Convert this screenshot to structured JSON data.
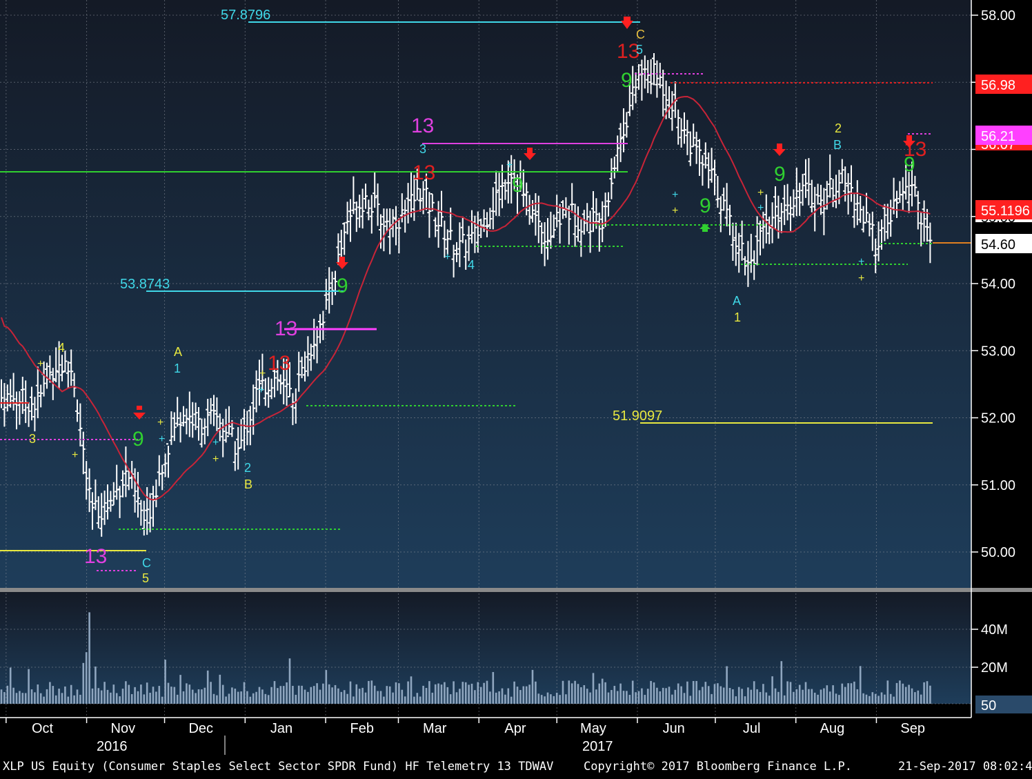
{
  "chart_data": {
    "type": "bar",
    "security": "XLP US Equity",
    "footer": {
      "left": "XLP US Equity (Consumer Staples Select Sector SPDR Fund) HF Telemetry 13 TDWAV",
      "center": "Copyright© 2017 Bloomberg Finance L.P.",
      "right": "21-Sep-2017 08:02:44"
    },
    "ylim": [
      49.5,
      58.2
    ],
    "y_ticks": [
      "58.00",
      "54.00",
      "53.00",
      "52.00",
      "51.00",
      "50.00"
    ],
    "x_months": [
      "Oct",
      "Nov",
      "Dec",
      "Jan",
      "Feb",
      "Mar",
      "Apr",
      "May",
      "Jun",
      "Jul",
      "Aug",
      "Sep"
    ],
    "x_years": [
      "2016",
      "2017"
    ],
    "price_tags": [
      {
        "label": "56.98",
        "bg": "#ff2020",
        "fg": "#ffffff"
      },
      {
        "label": "56.21",
        "bg": "#ff40ff",
        "fg": "#ffffff"
      },
      {
        "label": "56.07",
        "bg": "#ff2020",
        "fg": "#ffffff"
      },
      {
        "label": "55.1196",
        "bg": "#ff2020",
        "fg": "#ffffff"
      },
      {
        "label": "55.00",
        "bg": "#ffffff",
        "fg": "#000000"
      },
      {
        "label": "54.60",
        "bg": "#ffffff",
        "fg": "#000000"
      }
    ],
    "level_labels": [
      {
        "label": "57.8796",
        "value": 57.8796,
        "color": "#40d8e8"
      },
      {
        "label": "53.8743",
        "value": 53.8743,
        "color": "#40d8e8"
      },
      {
        "label": "51.9097",
        "value": 51.9097,
        "color": "#e8e840"
      }
    ],
    "series_close": [
      {
        "x": "2016-10-03",
        "y": 52.3
      },
      {
        "x": "2016-10-10",
        "y": 52.2
      },
      {
        "x": "2016-10-17",
        "y": 52.8
      },
      {
        "x": "2016-10-24",
        "y": 52.7
      },
      {
        "x": "2016-10-31",
        "y": 50.6
      },
      {
        "x": "2016-11-07",
        "y": 50.7
      },
      {
        "x": "2016-11-14",
        "y": 51.2
      },
      {
        "x": "2016-11-21",
        "y": 50.4
      },
      {
        "x": "2016-11-28",
        "y": 51.4
      },
      {
        "x": "2016-12-05",
        "y": 52.1
      },
      {
        "x": "2016-12-12",
        "y": 51.9
      },
      {
        "x": "2016-12-19",
        "y": 52.0
      },
      {
        "x": "2016-12-27",
        "y": 51.5
      },
      {
        "x": "2017-01-03",
        "y": 52.4
      },
      {
        "x": "2017-01-10",
        "y": 52.6
      },
      {
        "x": "2017-01-17",
        "y": 52.3
      },
      {
        "x": "2017-01-24",
        "y": 53.1
      },
      {
        "x": "2017-01-31",
        "y": 53.8
      },
      {
        "x": "2017-02-07",
        "y": 55.0
      },
      {
        "x": "2017-02-14",
        "y": 55.3
      },
      {
        "x": "2017-02-21",
        "y": 54.9
      },
      {
        "x": "2017-02-28",
        "y": 55.0
      },
      {
        "x": "2017-03-07",
        "y": 55.4
      },
      {
        "x": "2017-03-14",
        "y": 54.9
      },
      {
        "x": "2017-03-21",
        "y": 54.5
      },
      {
        "x": "2017-03-28",
        "y": 54.7
      },
      {
        "x": "2017-04-04",
        "y": 55.2
      },
      {
        "x": "2017-04-11",
        "y": 55.7
      },
      {
        "x": "2017-04-18",
        "y": 55.1
      },
      {
        "x": "2017-04-25",
        "y": 54.7
      },
      {
        "x": "2017-05-02",
        "y": 55.1
      },
      {
        "x": "2017-05-09",
        "y": 54.9
      },
      {
        "x": "2017-05-16",
        "y": 55.0
      },
      {
        "x": "2017-05-23",
        "y": 56.2
      },
      {
        "x": "2017-05-30",
        "y": 57.1
      },
      {
        "x": "2017-06-06",
        "y": 57.1
      },
      {
        "x": "2017-06-13",
        "y": 56.6
      },
      {
        "x": "2017-06-20",
        "y": 56.0
      },
      {
        "x": "2017-06-27",
        "y": 55.6
      },
      {
        "x": "2017-07-04",
        "y": 54.9
      },
      {
        "x": "2017-07-11",
        "y": 54.3
      },
      {
        "x": "2017-07-18",
        "y": 54.8
      },
      {
        "x": "2017-07-25",
        "y": 55.2
      },
      {
        "x": "2017-08-01",
        "y": 55.4
      },
      {
        "x": "2017-08-08",
        "y": 55.2
      },
      {
        "x": "2017-08-15",
        "y": 55.6
      },
      {
        "x": "2017-08-22",
        "y": 55.2
      },
      {
        "x": "2017-08-29",
        "y": 54.6
      },
      {
        "x": "2017-09-05",
        "y": 55.1
      },
      {
        "x": "2017-09-12",
        "y": 55.5
      },
      {
        "x": "2017-09-19",
        "y": 54.6
      }
    ],
    "volume_ticks": [
      "40M",
      "20M",
      "50"
    ]
  }
}
